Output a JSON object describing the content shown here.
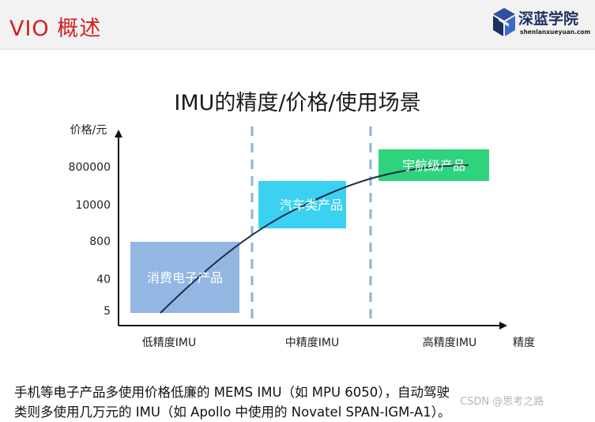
{
  "header": {
    "title": "VIO 概述",
    "logo_name": "深蓝学院",
    "logo_url": "shenlanxueyuan.com"
  },
  "colors": {
    "consumer": "#93b6e2",
    "automotive": "#3ad2f0",
    "aerospace": "#2ed47c",
    "title_red": "#d21f1f",
    "divider": "#8fb3d6"
  },
  "chart_data": {
    "type": "diagram",
    "title": "IMU的精度/价格/使用场景",
    "ylabel": "价格/元",
    "xlabel": "精度",
    "y_ticks": [
      "800000",
      "10000",
      "800",
      "40",
      "5"
    ],
    "x_categories": [
      "低精度IMU",
      "中精度IMU",
      "高精度IMU"
    ],
    "regions": [
      {
        "label": "消费电子产品",
        "precision": "低精度IMU",
        "price_range": [
          "5",
          "800"
        ]
      },
      {
        "label": "汽车类产品",
        "precision": "中精度IMU",
        "price_range": [
          "800",
          "10000"
        ]
      },
      {
        "label": "宇航级产品",
        "precision": "高精度IMU",
        "price_range": [
          "10000",
          "800000"
        ]
      }
    ],
    "trend": "increasing S-curve"
  },
  "note": {
    "line1": "手机等电子产品多使用价格低廉的 MEMS IMU（如 MPU 6050），自动驾驶",
    "line2": "类则多使用几万元的 IMU（如 Apollo 中使用的 Novatel SPAN-IGM-A1）。"
  },
  "watermark": "CSDN @思考之路"
}
